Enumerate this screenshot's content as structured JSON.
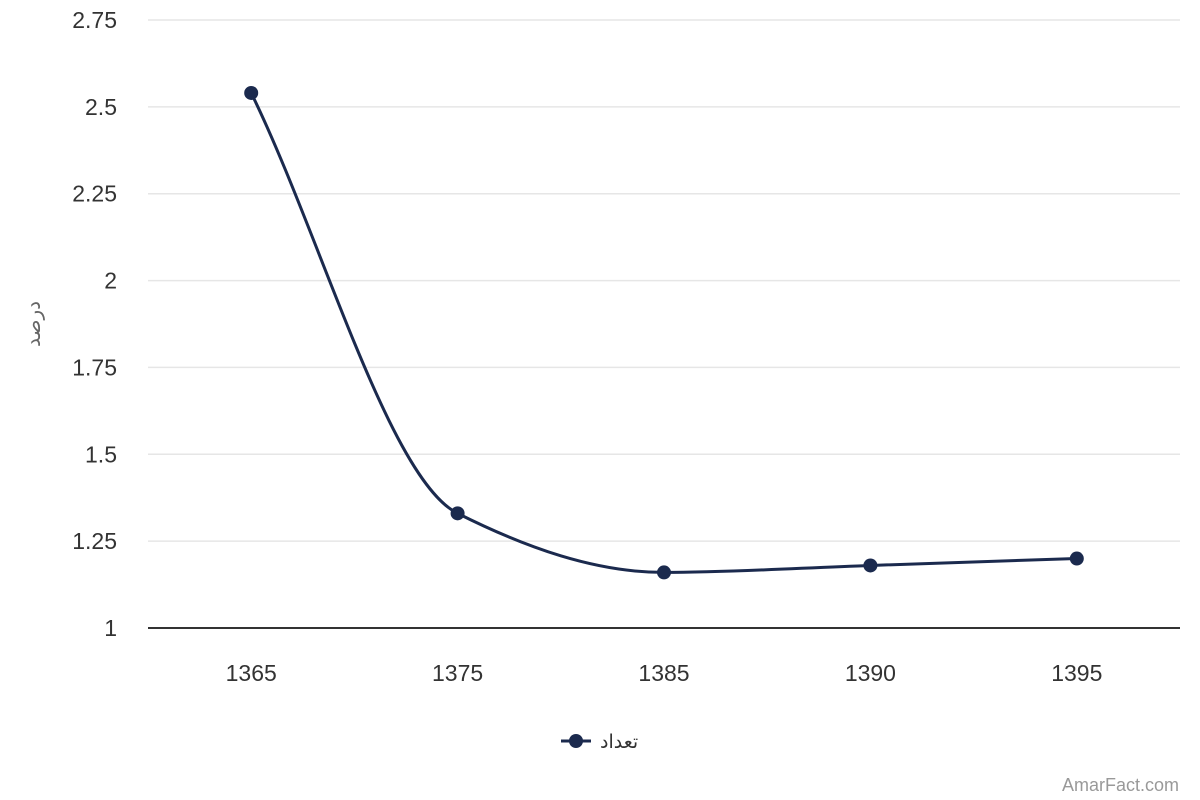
{
  "chart_data": {
    "type": "line",
    "categories": [
      "1365",
      "1375",
      "1385",
      "1390",
      "1395"
    ],
    "series": [
      {
        "name": "تعداد",
        "values": [
          2.54,
          1.33,
          1.16,
          1.18,
          1.2
        ],
        "color": "#1b2a4e"
      }
    ],
    "ylabel": "درصد",
    "xlabel": "",
    "ylim": [
      1,
      2.75
    ],
    "yticks": [
      "1",
      "1.25",
      "1.5",
      "1.75",
      "2",
      "2.25",
      "2.5",
      "2.75"
    ],
    "grid": true,
    "legend_position": "bottom-center",
    "curve": "smooth"
  },
  "credit": "AmarFact.com",
  "colors": {
    "series": "#1b2a4e",
    "grid": "#e6e6e6",
    "axis": "#333333"
  }
}
